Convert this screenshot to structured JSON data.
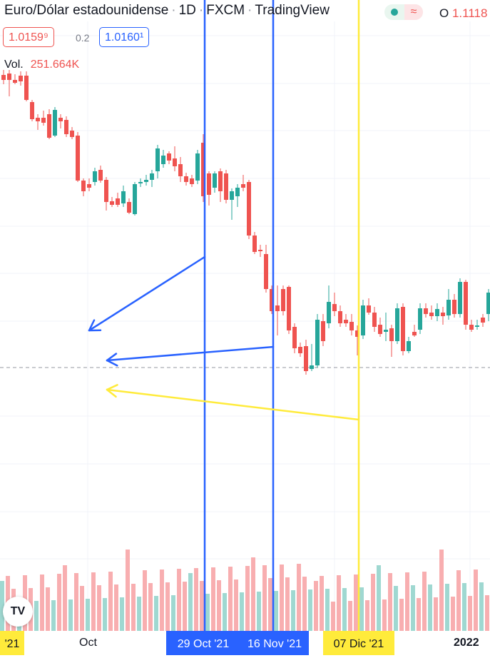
{
  "header": {
    "symbol": "Euro/Dólar estadounidense",
    "interval": "1D",
    "exchange": "FXCM",
    "brand": "TradingView",
    "sep": "·",
    "status_icon": "dot-icon",
    "wave_icon": "wave-icon",
    "ohlc_label": "O",
    "ohlc_value": "1.1118"
  },
  "trade": {
    "sell_price": "1.0159⁹",
    "spread": "0.2",
    "buy_price": "1.0160¹"
  },
  "volume": {
    "label": "Vol.",
    "value": "251.664K"
  },
  "logo": {
    "text": "TV"
  },
  "time_axis": {
    "labels": [
      {
        "text": "Oct"
      },
      {
        "text": "2022"
      }
    ],
    "left_tag": "'21",
    "tags": [
      {
        "text": "29 Oct '21",
        "color": "blue"
      },
      {
        "text": "16 Nov '21",
        "color": "blue"
      },
      {
        "text": "07 Dic '21",
        "color": "yellow"
      }
    ]
  },
  "colors": {
    "up": "#26a69a",
    "down": "#ef5350",
    "blue_line": "#2962ff",
    "yellow_line": "#ffeb3b"
  }
}
